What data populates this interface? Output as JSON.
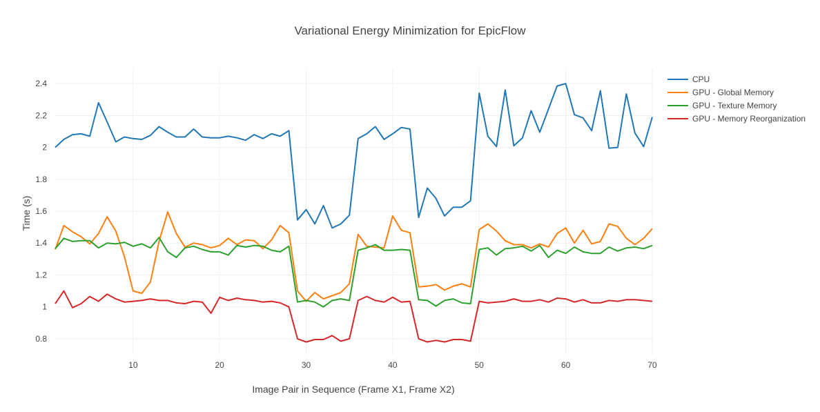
{
  "chart_data": {
    "type": "line",
    "title": "Variational Energy Minimization for EpicFlow",
    "xlabel": "Image Pair in Sequence (Frame X1, Frame X2)",
    "ylabel": "Time (s)",
    "xlim": [
      1,
      70
    ],
    "ylim": [
      0.7,
      2.5
    ],
    "x_ticks": [
      10,
      20,
      30,
      40,
      50,
      60,
      70
    ],
    "y_ticks": [
      0.8,
      1,
      1.2,
      1.4,
      1.6,
      1.8,
      2,
      2.2,
      2.4
    ],
    "grid": true,
    "legend_position": "top-right",
    "x": [
      1,
      2,
      3,
      4,
      5,
      6,
      7,
      8,
      9,
      10,
      11,
      12,
      13,
      14,
      15,
      16,
      17,
      18,
      19,
      20,
      21,
      22,
      23,
      24,
      25,
      26,
      27,
      28,
      29,
      30,
      31,
      32,
      33,
      34,
      35,
      36,
      37,
      38,
      39,
      40,
      41,
      42,
      43,
      44,
      45,
      46,
      47,
      48,
      49,
      50,
      51,
      52,
      53,
      54,
      55,
      56,
      57,
      58,
      59,
      60,
      61,
      62,
      63,
      64,
      65,
      66,
      67,
      68,
      69,
      70
    ],
    "series": [
      {
        "name": "CPU",
        "color": "#1f77b4",
        "values": [
          2.0,
          2.05,
          2.08,
          2.085,
          2.07,
          2.28,
          2.16,
          2.035,
          2.065,
          2.055,
          2.05,
          2.075,
          2.13,
          2.095,
          2.065,
          2.065,
          2.115,
          2.065,
          2.06,
          2.06,
          2.07,
          2.06,
          2.045,
          2.08,
          2.055,
          2.085,
          2.07,
          2.105,
          1.545,
          1.61,
          1.52,
          1.635,
          1.495,
          1.52,
          1.575,
          2.055,
          2.085,
          2.13,
          2.05,
          2.085,
          2.125,
          2.115,
          1.56,
          1.745,
          1.68,
          1.57,
          1.625,
          1.625,
          1.665,
          2.34,
          2.07,
          2.005,
          2.36,
          2.01,
          2.06,
          2.23,
          2.095,
          2.24,
          2.385,
          2.4,
          2.205,
          2.185,
          2.105,
          2.355,
          1.995,
          2.0,
          2.335,
          2.09,
          2.005,
          2.19
        ]
      },
      {
        "name": "GPU - Global Memory",
        "color": "#ff7f0e",
        "values": [
          1.36,
          1.51,
          1.47,
          1.44,
          1.395,
          1.46,
          1.565,
          1.475,
          1.315,
          1.1,
          1.085,
          1.155,
          1.41,
          1.595,
          1.46,
          1.375,
          1.4,
          1.39,
          1.37,
          1.385,
          1.43,
          1.39,
          1.42,
          1.415,
          1.365,
          1.42,
          1.51,
          1.465,
          1.1,
          1.035,
          1.09,
          1.05,
          1.07,
          1.09,
          1.145,
          1.455,
          1.38,
          1.375,
          1.37,
          1.57,
          1.48,
          1.465,
          1.125,
          1.13,
          1.14,
          1.105,
          1.13,
          1.145,
          1.125,
          1.485,
          1.52,
          1.475,
          1.415,
          1.39,
          1.39,
          1.37,
          1.395,
          1.375,
          1.46,
          1.495,
          1.4,
          1.48,
          1.395,
          1.41,
          1.52,
          1.505,
          1.43,
          1.39,
          1.43,
          1.49
        ]
      },
      {
        "name": "GPU - Texture Memory",
        "color": "#2ca02c",
        "values": [
          1.365,
          1.43,
          1.41,
          1.415,
          1.415,
          1.37,
          1.4,
          1.395,
          1.405,
          1.38,
          1.395,
          1.37,
          1.435,
          1.345,
          1.31,
          1.37,
          1.38,
          1.36,
          1.345,
          1.345,
          1.325,
          1.385,
          1.375,
          1.385,
          1.38,
          1.355,
          1.345,
          1.38,
          1.03,
          1.04,
          1.03,
          1.0,
          1.04,
          1.05,
          1.04,
          1.355,
          1.37,
          1.39,
          1.355,
          1.355,
          1.36,
          1.355,
          1.045,
          1.04,
          1.005,
          1.04,
          1.05,
          1.025,
          1.02,
          1.36,
          1.37,
          1.325,
          1.365,
          1.37,
          1.38,
          1.35,
          1.385,
          1.31,
          1.355,
          1.335,
          1.375,
          1.345,
          1.335,
          1.335,
          1.375,
          1.35,
          1.37,
          1.375,
          1.365,
          1.385
        ]
      },
      {
        "name": "GPU - Memory Reorganization",
        "color": "#d62728",
        "values": [
          1.02,
          1.1,
          0.995,
          1.02,
          1.065,
          1.035,
          1.08,
          1.05,
          1.03,
          1.035,
          1.04,
          1.05,
          1.04,
          1.04,
          1.025,
          1.02,
          1.035,
          1.03,
          0.96,
          1.06,
          1.04,
          1.055,
          1.045,
          1.04,
          1.03,
          1.035,
          1.025,
          1.0,
          0.8,
          0.78,
          0.795,
          0.795,
          0.82,
          0.785,
          0.8,
          1.04,
          1.065,
          1.04,
          1.03,
          1.06,
          1.03,
          1.035,
          0.8,
          0.78,
          0.79,
          0.78,
          0.795,
          0.795,
          0.785,
          1.035,
          1.025,
          1.03,
          1.035,
          1.05,
          1.035,
          1.035,
          1.045,
          1.03,
          1.055,
          1.05,
          1.03,
          1.045,
          1.025,
          1.025,
          1.04,
          1.035,
          1.045,
          1.045,
          1.04,
          1.035
        ]
      }
    ]
  }
}
